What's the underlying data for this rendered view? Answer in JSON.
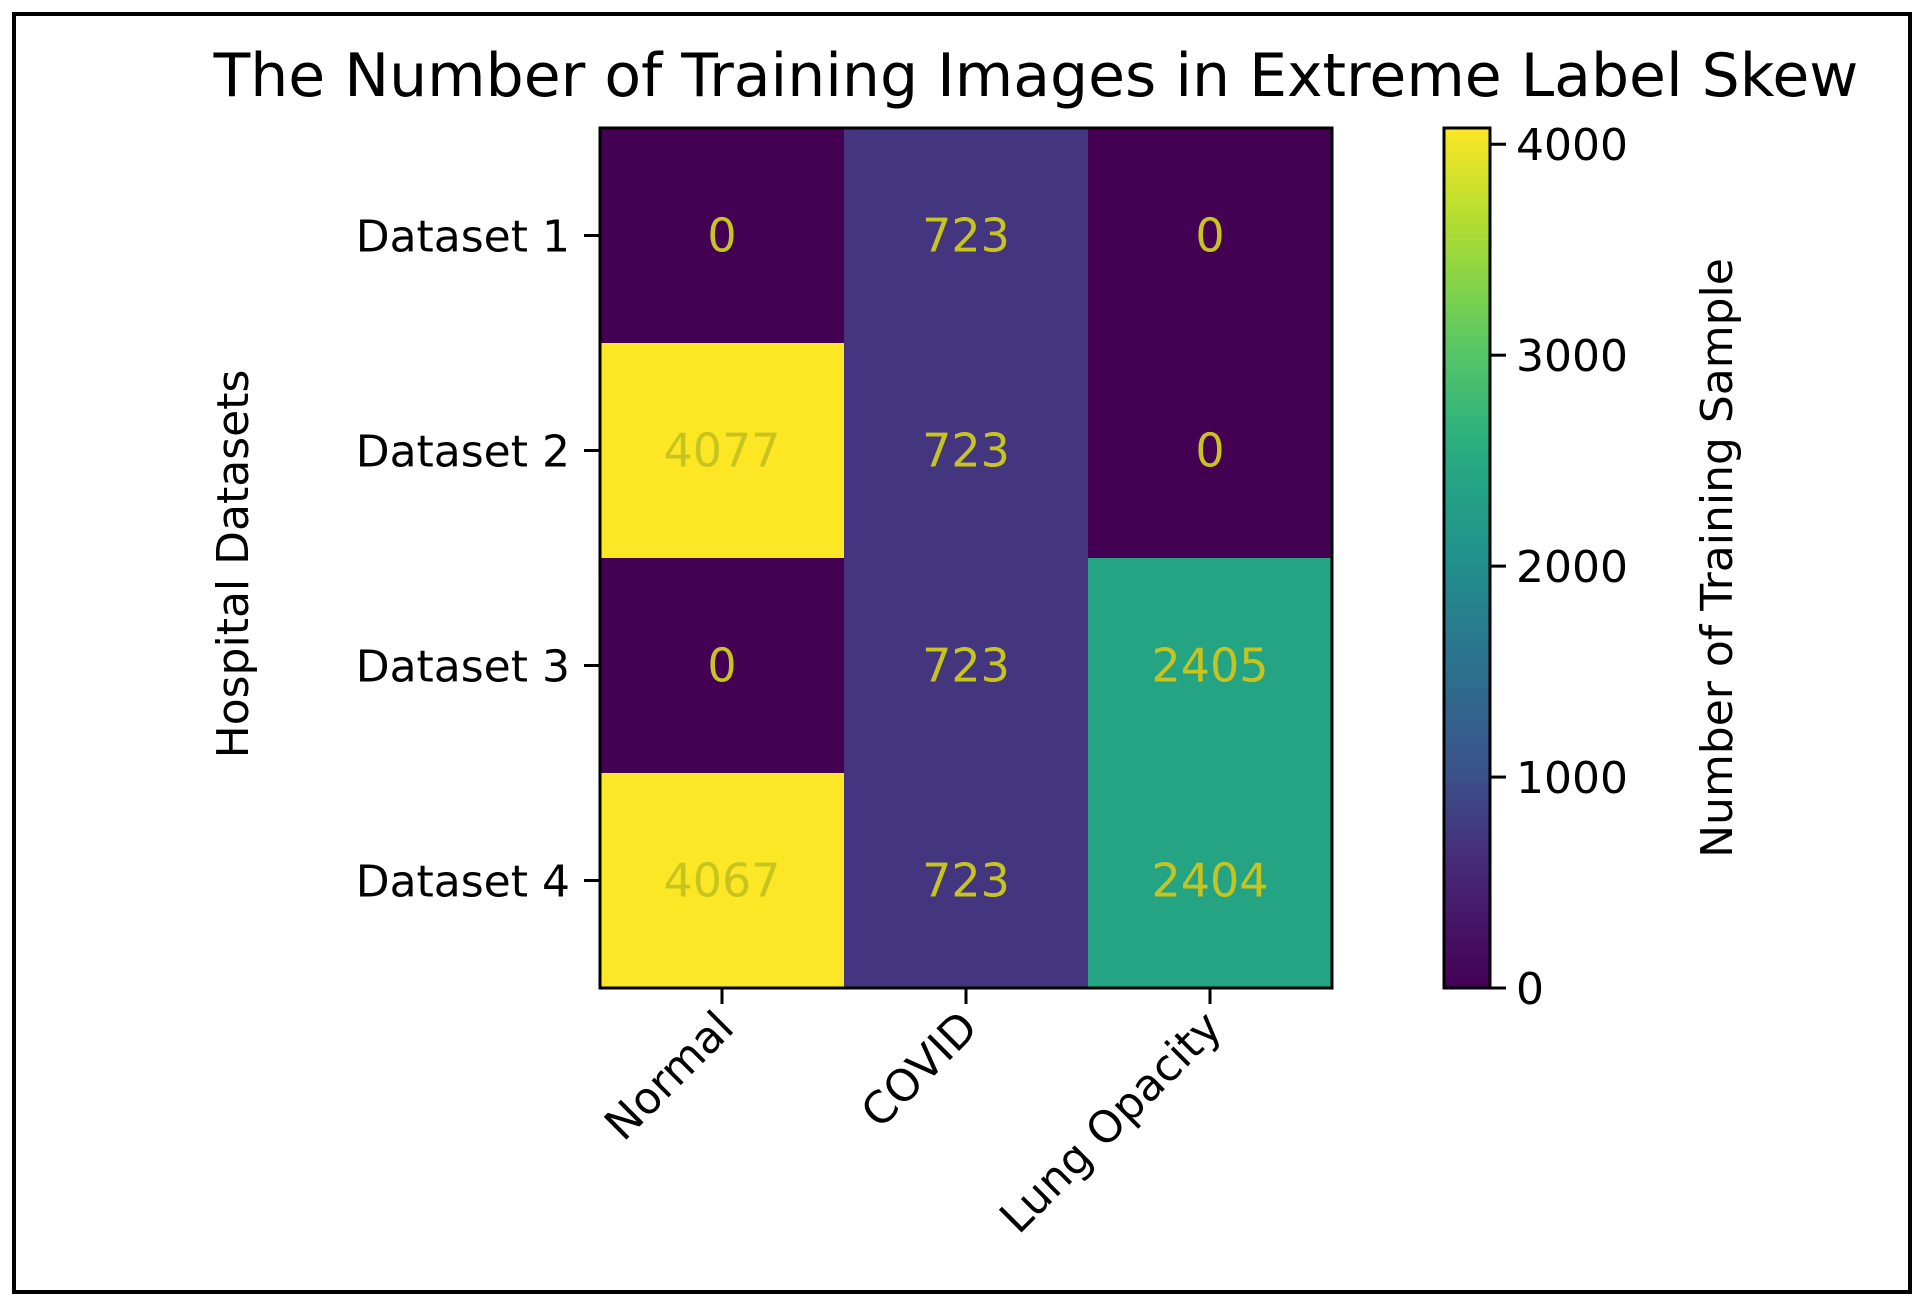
{
  "chart_data": {
    "type": "heatmap",
    "title": "The Number of Training Images in Extreme Label Skew",
    "xlabel": "",
    "ylabel": "Hospital Datasets",
    "x_categories": [
      "Normal",
      "COVID",
      "Lung Opacity"
    ],
    "y_categories": [
      "Dataset 1",
      "Dataset 2",
      "Dataset 3",
      "Dataset 4"
    ],
    "values": [
      [
        0,
        723,
        0
      ],
      [
        4077,
        723,
        0
      ],
      [
        0,
        723,
        2405
      ],
      [
        4067,
        723,
        2404
      ]
    ],
    "colorbar": {
      "label": "Number of Training Sample",
      "range": [
        0,
        4077
      ],
      "ticks": [
        0,
        1000,
        2000,
        3000,
        4000
      ],
      "colormap": "viridis"
    },
    "annotation_color": "#c8c41f",
    "grid": false
  }
}
